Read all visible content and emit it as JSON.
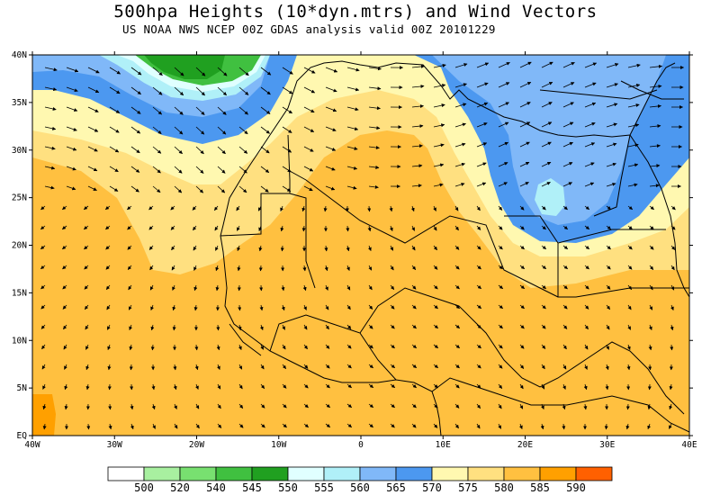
{
  "title": "500hpa Heights (10*dyn.mtrs) and Wind Vectors",
  "subtitle": "US NOAA NWS NCEP 00Z GDAS analysis valid 00Z 20101229",
  "lat_labels": [
    "40N",
    "35N",
    "30N",
    "25N",
    "20N",
    "15N",
    "10N",
    "5N",
    "EQ"
  ],
  "lon_labels": [
    "40W",
    "30W",
    "20W",
    "10W",
    "0",
    "10E",
    "20E",
    "30E",
    "40E"
  ],
  "colorbar": {
    "labels": [
      "500",
      "520",
      "540",
      "545",
      "550",
      "555",
      "560",
      "565",
      "570",
      "575",
      "580",
      "585",
      "590"
    ],
    "colors": [
      "#ffffff",
      "#a8f0a0",
      "#78e070",
      "#40c040",
      "#20a020",
      "#e0ffff",
      "#b0f0f8",
      "#80b8f8",
      "#4c98f0",
      "#fff8b0",
      "#ffe080",
      "#ffc040",
      "#ffa000",
      "#ff6000"
    ]
  },
  "fill_colors": {
    "green_dark": "#20a020",
    "green": "#40c040",
    "cyan_light": "#e0ffff",
    "cyan": "#b0f0f8",
    "blue_light": "#80b8f8",
    "blue": "#4c98f0",
    "yellow_light": "#fff8b0",
    "yellow": "#ffe080",
    "orange": "#ffc040",
    "orange_dark": "#ffa000"
  }
}
